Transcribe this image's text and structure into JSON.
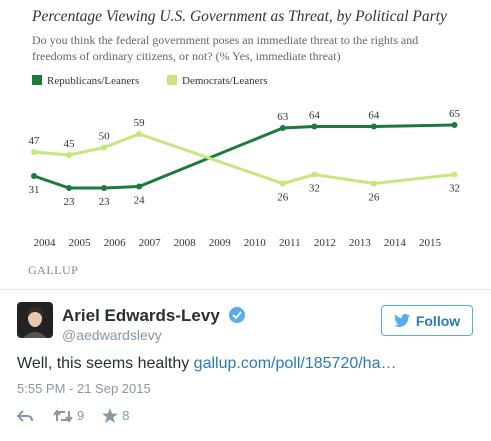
{
  "chart_data": {
    "type": "line",
    "title": "Percentage Viewing U.S. Government as Threat, by Political Party",
    "subtitle": "Do you think the federal government poses an immediate threat to the rights and freedoms of ordinary citizens, or not? (% Yes, immediate threat)",
    "source": "GALLUP",
    "x": [
      2003.7,
      2004.7,
      2005.7,
      2006.7,
      2010.8,
      2011.7,
      2013.4,
      2015.7
    ],
    "xlim": [
      2003.5,
      2016
    ],
    "xticks": [
      2004,
      2005,
      2006,
      2007,
      2008,
      2009,
      2010,
      2011,
      2012,
      2013,
      2014,
      2015
    ],
    "series": [
      {
        "name": "Republicans/Leaners",
        "color": "#1b7a3c",
        "values": [
          31,
          23,
          23,
          24,
          63,
          64,
          64,
          65
        ]
      },
      {
        "name": "Democrats/Leaners",
        "color": "#c6e67e",
        "values": [
          47,
          45,
          50,
          59,
          26,
          32,
          26,
          32
        ]
      }
    ]
  },
  "tweet": {
    "name": "Ariel Edwards-Levy",
    "handle": "@aedwardslevy",
    "follow": "Follow",
    "text": "Well, this seems healthy",
    "link": "gallup.com/poll/185720/ha…",
    "time": "5:55 PM - 21 Sep 2015",
    "retweets": 9,
    "likes": 8
  }
}
